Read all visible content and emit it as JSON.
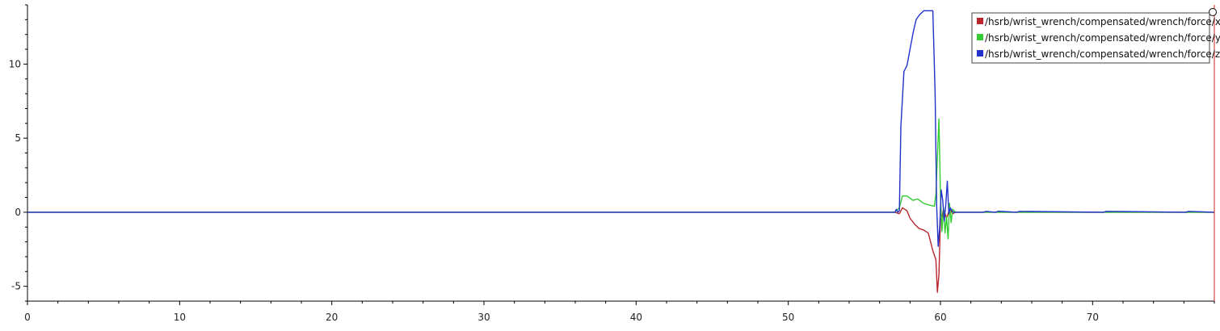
{
  "chart_data": {
    "type": "line",
    "title": "",
    "xlabel": "",
    "ylabel": "",
    "xlim": [
      0,
      78
    ],
    "ylim": [
      -6.0,
      14.0
    ],
    "grid": false,
    "legend_position": "top-right",
    "x_ticks": [
      0,
      10,
      20,
      30,
      40,
      50,
      60,
      70
    ],
    "x_tick_labels": [
      "0",
      "10",
      "20",
      "30",
      "40",
      "50",
      "60",
      "70"
    ],
    "y_ticks": [
      -5,
      0,
      5,
      10
    ],
    "y_tick_labels": [
      "-5",
      "0",
      "5",
      "10"
    ],
    "cursor_x": 78,
    "cursor_color": "#cc2222",
    "series": [
      {
        "name": "/hsrb/wrist_wrench/compensated/wrench/force/x",
        "color": "#b8262c",
        "x": [
          0,
          57.0,
          57.3,
          57.5,
          57.8,
          58.0,
          58.3,
          58.6,
          58.9,
          59.2,
          59.5,
          59.7,
          59.8,
          59.9,
          60.0,
          60.1,
          60.2,
          60.4,
          60.6,
          60.8,
          61.0,
          78
        ],
        "y": [
          0,
          0,
          -0.1,
          0.3,
          0.1,
          -0.4,
          -0.8,
          -1.1,
          -1.2,
          -1.4,
          -2.6,
          -3.2,
          -5.4,
          -4.2,
          -0.5,
          -0.3,
          0.2,
          -0.4,
          0.2,
          -0.1,
          0,
          0
        ]
      },
      {
        "name": "/hsrb/wrist_wrench/compensated/wrench/force/y",
        "color": "#33cc33",
        "x": [
          0,
          57.0,
          57.3,
          57.5,
          57.8,
          58.2,
          58.5,
          58.9,
          59.2,
          59.6,
          59.7,
          59.8,
          59.9,
          60.0,
          60.1,
          60.2,
          60.3,
          60.4,
          60.5,
          60.6,
          60.7,
          60.8,
          61.0,
          78
        ],
        "y": [
          0,
          0,
          0.3,
          1.1,
          1.1,
          0.8,
          0.9,
          0.6,
          0.5,
          0.4,
          1.2,
          3.8,
          6.3,
          1.2,
          -1.3,
          0.3,
          -1.4,
          -0.3,
          -1.8,
          0.6,
          -0.7,
          0.2,
          0,
          0
        ]
      },
      {
        "name": "/hsrb/wrist_wrench/compensated/wrench/force/z",
        "color": "#2233cc",
        "x": [
          0,
          57.0,
          57.1,
          57.2,
          57.3,
          57.4,
          57.6,
          57.8,
          58.0,
          58.2,
          58.4,
          58.6,
          58.9,
          59.2,
          59.5,
          59.65,
          59.75,
          59.85,
          59.95,
          60.05,
          60.15,
          60.25,
          60.35,
          60.45,
          60.55,
          60.65,
          60.75,
          60.85,
          61.0,
          62.8,
          63.0,
          63.6,
          63.8,
          65.0,
          65.2,
          70.7,
          70.9,
          76.1,
          76.3,
          78
        ],
        "y": [
          0,
          0,
          0.2,
          0,
          0.1,
          5.8,
          9.5,
          9.9,
          11.0,
          12.1,
          13.0,
          13.3,
          13.6,
          13.6,
          13.6,
          8.0,
          0.5,
          -2.3,
          -1.0,
          1.5,
          0.8,
          -0.6,
          0.5,
          2.1,
          -0.1,
          0.3,
          0.1,
          0,
          0,
          0,
          0.06,
          0,
          0.07,
          0,
          0.06,
          0,
          0.06,
          0,
          0.06,
          0
        ]
      }
    ]
  }
}
